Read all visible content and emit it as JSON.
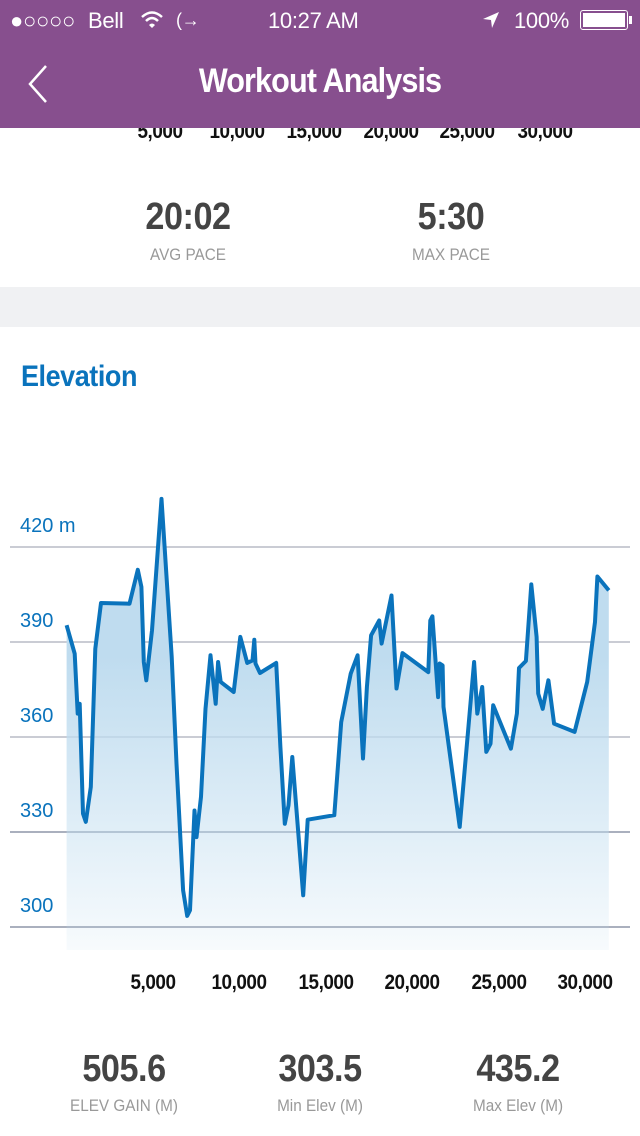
{
  "status_bar": {
    "signal": "●○○○○",
    "carrier": "Bell",
    "time": "10:27 AM",
    "battery": "100%",
    "icons": [
      "wifi-icon",
      "call-forward-icon",
      "location-arrow-icon",
      "battery-icon"
    ]
  },
  "nav": {
    "title": "Workout Analysis",
    "back_icon": "chevron-left-icon"
  },
  "colors": {
    "header": "#874F8E",
    "accent": "#0A73BC",
    "fill": "#BFDCEF"
  },
  "pace_section": {
    "x_ticks": [
      "5,000",
      "10,000",
      "15,000",
      "20,000",
      "25,000",
      "30,000"
    ],
    "stats": [
      {
        "value": "20:02",
        "label": "AVG PACE"
      },
      {
        "value": "5:30",
        "label": "MAX PACE"
      }
    ]
  },
  "elevation": {
    "title": "Elevation",
    "stats": [
      {
        "value": "505.6",
        "label": "ELEV GAIN (M)"
      },
      {
        "value": "303.5",
        "label": "Min Elev (M)"
      },
      {
        "value": "435.2",
        "label": "Max Elev (M)"
      }
    ]
  },
  "chart_data": {
    "type": "area",
    "title": "Elevation",
    "xlabel": "",
    "ylabel": "",
    "y_ticks": [
      300,
      330,
      360,
      390,
      420
    ],
    "y_tick_labels": [
      "300",
      "330",
      "360",
      "390",
      "420 m"
    ],
    "x_ticks": [
      5000,
      10000,
      15000,
      20000,
      25000,
      30000
    ],
    "x_tick_labels": [
      "5,000",
      "10,000",
      "15,000",
      "20,000",
      "25,000",
      "30,000"
    ],
    "ylim": [
      300,
      420
    ],
    "grid": true,
    "x": [
      0,
      470,
      640,
      760,
      950,
      1110,
      1400,
      1660,
      1990,
      3640,
      4120,
      4330,
      4470,
      4610,
      4940,
      5490,
      6080,
      6360,
      6740,
      6980,
      7140,
      7400,
      7520,
      7780,
      8040,
      8330,
      8630,
      8770,
      8920,
      9670,
      10050,
      10450,
      10760,
      10860,
      10930,
      11190,
      12130,
      12370,
      12630,
      12840,
      13060,
      13690,
      13950,
      15490,
      15890,
      16440,
      16840,
      17150,
      17380,
      17620,
      18090,
      18230,
      18800,
      19090,
      19440,
      20930,
      21050,
      21170,
      21500,
      21590,
      21760,
      21810,
      22750,
      23580,
      23770,
      24050,
      24290,
      24530,
      24690,
      25710,
      26060,
      26180,
      26580,
      26890,
      27200,
      27290,
      27550,
      27880,
      28210,
      29400,
      30130,
      30580,
      30720,
      31380
    ],
    "y": [
      395.3,
      386.3,
      367.4,
      370.5,
      335.8,
      333.2,
      344.2,
      387.9,
      402.3,
      402.1,
      412.8,
      407.4,
      383.7,
      377.9,
      393.7,
      435.2,
      385.3,
      351.6,
      311.6,
      303.5,
      305.3,
      336.8,
      328.4,
      341.1,
      368.9,
      385.8,
      370.5,
      383.7,
      377.4,
      374.2,
      391.6,
      383.4,
      384.2,
      390.7,
      383.2,
      380.2,
      383.4,
      356.8,
      332.6,
      338.4,
      353.7,
      310.0,
      333.9,
      335.3,
      364.7,
      380.0,
      385.8,
      353.2,
      375.8,
      392.1,
      396.8,
      389.5,
      404.7,
      375.3,
      386.5,
      380.5,
      396.8,
      398.1,
      372.6,
      383.2,
      382.6,
      369.5,
      331.6,
      383.7,
      367.4,
      375.8,
      355.3,
      357.9,
      370.0,
      356.3,
      367.4,
      381.8,
      384.0,
      408.2,
      391.6,
      373.7,
      368.9,
      377.9,
      364.2,
      361.6,
      377.4,
      396.3,
      410.7,
      406.3
    ]
  }
}
